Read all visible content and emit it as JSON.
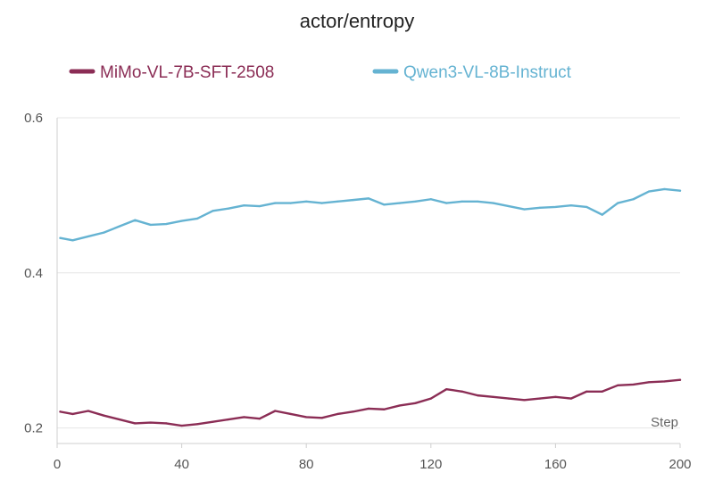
{
  "chart_data": {
    "type": "line",
    "title": "actor/entropy",
    "xlabel": "Step",
    "ylabel": "",
    "xlim": [
      0,
      200
    ],
    "ylim": [
      0.18,
      0.6
    ],
    "xticks": [
      0,
      40,
      80,
      120,
      160,
      200
    ],
    "xtick_labels": [
      "0",
      "40",
      "80",
      "120",
      "160",
      "200"
    ],
    "yticks": [
      0.2,
      0.4,
      0.6
    ],
    "ytick_labels": [
      "0.2",
      "0.4",
      "0.6"
    ],
    "grid": "horizontal",
    "legend_position": "top-center",
    "series": [
      {
        "name": "MiMo-VL-7B-SFT-2508",
        "color": "#8b2d55",
        "x": [
          1,
          5,
          10,
          15,
          20,
          25,
          30,
          35,
          40,
          45,
          50,
          55,
          60,
          65,
          70,
          75,
          80,
          85,
          90,
          95,
          100,
          105,
          110,
          115,
          120,
          125,
          130,
          135,
          140,
          145,
          150,
          155,
          160,
          165,
          170,
          175,
          180,
          185,
          190,
          195,
          200
        ],
        "y": [
          0.221,
          0.218,
          0.222,
          0.216,
          0.211,
          0.206,
          0.207,
          0.206,
          0.203,
          0.205,
          0.208,
          0.211,
          0.214,
          0.212,
          0.222,
          0.218,
          0.214,
          0.213,
          0.218,
          0.221,
          0.225,
          0.224,
          0.229,
          0.232,
          0.238,
          0.25,
          0.247,
          0.242,
          0.24,
          0.238,
          0.236,
          0.238,
          0.24,
          0.238,
          0.247,
          0.247,
          0.255,
          0.256,
          0.259,
          0.26,
          0.262
        ]
      },
      {
        "name": "Qwen3-VL-8B-Instruct",
        "color": "#65b3d2",
        "x": [
          1,
          5,
          10,
          15,
          20,
          25,
          30,
          35,
          40,
          45,
          50,
          55,
          60,
          65,
          70,
          75,
          80,
          85,
          90,
          95,
          100,
          105,
          110,
          115,
          120,
          125,
          130,
          135,
          140,
          145,
          150,
          155,
          160,
          165,
          170,
          175,
          180,
          185,
          190,
          195,
          200
        ],
        "y": [
          0.445,
          0.442,
          0.447,
          0.452,
          0.46,
          0.468,
          0.462,
          0.463,
          0.467,
          0.47,
          0.48,
          0.483,
          0.487,
          0.486,
          0.49,
          0.49,
          0.492,
          0.49,
          0.492,
          0.494,
          0.496,
          0.488,
          0.49,
          0.492,
          0.495,
          0.49,
          0.492,
          0.492,
          0.49,
          0.486,
          0.482,
          0.484,
          0.485,
          0.487,
          0.485,
          0.475,
          0.49,
          0.495,
          0.505,
          0.508,
          0.506
        ]
      }
    ]
  }
}
